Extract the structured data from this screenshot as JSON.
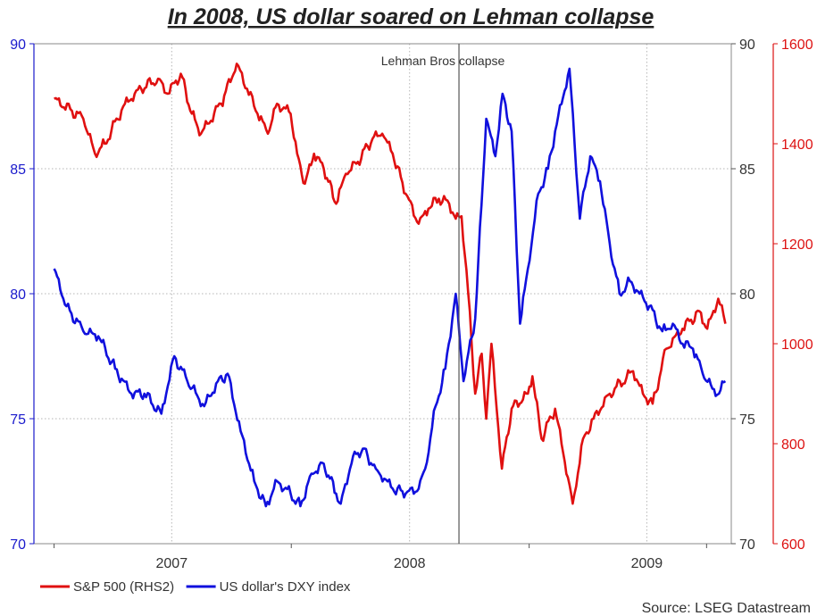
{
  "chart_data": {
    "type": "line",
    "title": "In 2008, US dollar soared on Lehman collapse",
    "annotation": "Lehman Bros collapse",
    "source": "Source: LSEG Datastream",
    "x_labels": [
      "2007",
      "2008",
      "2009"
    ],
    "left_axis": {
      "ticks": [
        "70",
        "75",
        "80",
        "85",
        "90"
      ],
      "range": [
        70,
        90
      ],
      "color": "#1a1acc"
    },
    "right_axis_1": {
      "ticks": [
        "70",
        "75",
        "80",
        "85",
        "90"
      ],
      "range": [
        70,
        90
      ],
      "color": "#333333"
    },
    "right_axis_2": {
      "ticks": [
        "600",
        "800",
        "1000",
        "1200",
        "1400",
        "1600"
      ],
      "range": [
        600,
        1600
      ],
      "color": "#dd1111"
    },
    "lehman_date": "2008-09-15",
    "grid": true,
    "legend_position": "bottom-left",
    "series": [
      {
        "name": "S&P 500 (RHS2)",
        "color": "#e01010",
        "axis": "right_axis_2",
        "points": [
          [
            "2007-01-01",
            1490
          ],
          [
            "2007-02-15",
            1450
          ],
          [
            "2007-03-05",
            1380
          ],
          [
            "2007-03-20",
            1400
          ],
          [
            "2007-04-20",
            1480
          ],
          [
            "2007-05-15",
            1510
          ],
          [
            "2007-06-10",
            1530
          ],
          [
            "2007-06-25",
            1500
          ],
          [
            "2007-07-15",
            1540
          ],
          [
            "2007-08-01",
            1460
          ],
          [
            "2007-08-15",
            1420
          ],
          [
            "2007-08-25",
            1440
          ],
          [
            "2007-09-15",
            1480
          ],
          [
            "2007-10-09",
            1560
          ],
          [
            "2007-10-25",
            1510
          ],
          [
            "2007-11-10",
            1460
          ],
          [
            "2007-11-26",
            1420
          ],
          [
            "2007-12-10",
            1480
          ],
          [
            "2007-12-31",
            1460
          ],
          [
            "2008-01-10",
            1380
          ],
          [
            "2008-01-22",
            1320
          ],
          [
            "2008-02-05",
            1380
          ],
          [
            "2008-02-20",
            1350
          ],
          [
            "2008-03-10",
            1280
          ],
          [
            "2008-03-25",
            1340
          ],
          [
            "2008-04-10",
            1360
          ],
          [
            "2008-05-05",
            1410
          ],
          [
            "2008-05-20",
            1420
          ],
          [
            "2008-06-05",
            1380
          ],
          [
            "2008-06-25",
            1300
          ],
          [
            "2008-07-15",
            1240
          ],
          [
            "2008-07-30",
            1270
          ],
          [
            "2008-08-15",
            1290
          ],
          [
            "2008-08-31",
            1280
          ],
          [
            "2008-09-10",
            1250
          ],
          [
            "2008-09-19",
            1255
          ],
          [
            "2008-09-29",
            1105
          ],
          [
            "2008-10-10",
            900
          ],
          [
            "2008-10-20",
            980
          ],
          [
            "2008-10-27",
            850
          ],
          [
            "2008-11-04",
            1000
          ],
          [
            "2008-11-20",
            750
          ],
          [
            "2008-12-05",
            870
          ],
          [
            "2008-12-30",
            900
          ],
          [
            "2009-01-06",
            935
          ],
          [
            "2009-01-20",
            810
          ],
          [
            "2009-02-10",
            870
          ],
          [
            "2009-03-09",
            680
          ],
          [
            "2009-03-25",
            810
          ],
          [
            "2009-04-10",
            850
          ],
          [
            "2009-05-05",
            900
          ],
          [
            "2009-06-10",
            945
          ],
          [
            "2009-06-25",
            900
          ],
          [
            "2009-07-10",
            880
          ],
          [
            "2009-07-31",
            990
          ],
          [
            "2009-08-25",
            1030
          ],
          [
            "2009-09-20",
            1065
          ],
          [
            "2009-10-02",
            1030
          ],
          [
            "2009-10-19",
            1090
          ],
          [
            "2009-10-30",
            1040
          ]
        ]
      },
      {
        "name": "US dollar's DXY index",
        "color": "#1010dd",
        "axis": "left_axis",
        "points": [
          [
            "2007-01-01",
            81.0
          ],
          [
            "2007-01-20",
            79.5
          ],
          [
            "2007-02-15",
            78.5
          ],
          [
            "2007-03-10",
            78.3
          ],
          [
            "2007-04-05",
            77.0
          ],
          [
            "2007-04-30",
            76.0
          ],
          [
            "2007-05-20",
            76.0
          ],
          [
            "2007-06-15",
            75.2
          ],
          [
            "2007-07-05",
            77.5
          ],
          [
            "2007-07-25",
            76.5
          ],
          [
            "2007-08-20",
            75.5
          ],
          [
            "2007-09-10",
            76.5
          ],
          [
            "2007-09-25",
            76.8
          ],
          [
            "2007-10-15",
            74.5
          ],
          [
            "2007-11-05",
            72.5
          ],
          [
            "2007-11-23",
            71.5
          ],
          [
            "2007-12-10",
            72.5
          ],
          [
            "2007-12-31",
            72.0
          ],
          [
            "2008-01-15",
            71.5
          ],
          [
            "2008-02-01",
            72.8
          ],
          [
            "2008-02-20",
            73.2
          ],
          [
            "2008-03-10",
            72.0
          ],
          [
            "2008-03-17",
            71.6
          ],
          [
            "2008-04-05",
            73.5
          ],
          [
            "2008-04-20",
            73.8
          ],
          [
            "2008-05-10",
            73.0
          ],
          [
            "2008-06-05",
            72.2
          ],
          [
            "2008-06-25",
            72.0
          ],
          [
            "2008-07-15",
            72.2
          ],
          [
            "2008-07-25",
            73.0
          ],
          [
            "2008-08-10",
            75.5
          ],
          [
            "2008-08-25",
            77.0
          ],
          [
            "2008-09-10",
            80.0
          ],
          [
            "2008-09-22",
            76.5
          ],
          [
            "2008-10-10",
            79.0
          ],
          [
            "2008-10-27",
            87.0
          ],
          [
            "2008-11-10",
            85.5
          ],
          [
            "2008-11-21",
            88.0
          ],
          [
            "2008-12-05",
            86.5
          ],
          [
            "2008-12-18",
            78.8
          ],
          [
            "2008-12-30",
            81.0
          ],
          [
            "2009-01-15",
            84.0
          ],
          [
            "2009-01-30",
            85.0
          ],
          [
            "2009-02-10",
            86.5
          ],
          [
            "2009-03-04",
            89.0
          ],
          [
            "2009-03-20",
            83.0
          ],
          [
            "2009-04-05",
            85.5
          ],
          [
            "2009-04-20",
            84.5
          ],
          [
            "2009-05-05",
            82.0
          ],
          [
            "2009-05-20",
            80.0
          ],
          [
            "2009-06-05",
            80.5
          ],
          [
            "2009-06-20",
            80.0
          ],
          [
            "2009-07-05",
            79.5
          ],
          [
            "2009-07-25",
            78.5
          ],
          [
            "2009-08-10",
            78.8
          ],
          [
            "2009-08-25",
            78.0
          ],
          [
            "2009-09-10",
            77.8
          ],
          [
            "2009-09-25",
            76.8
          ],
          [
            "2009-10-10",
            76.2
          ],
          [
            "2009-10-20",
            76.0
          ],
          [
            "2009-10-30",
            76.5
          ]
        ]
      }
    ]
  }
}
